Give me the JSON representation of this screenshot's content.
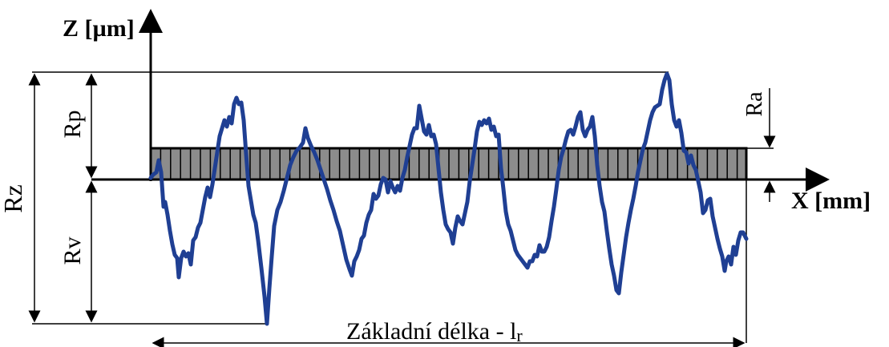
{
  "axes": {
    "z_label": "Z [µm]",
    "x_label": "X [mm]"
  },
  "labels": {
    "rz": "Rz",
    "rp": "Rp",
    "rv": "Rv",
    "ra": "Ra",
    "base_length_text": "Základní délka - l",
    "base_length_subscript": "r"
  },
  "colors": {
    "profile": "#1f3f93",
    "band_fill": "#8c8c8c",
    "lines": "#000000"
  },
  "profile_shape": "roughness profile trace (irregular wave crossing mean line)"
}
